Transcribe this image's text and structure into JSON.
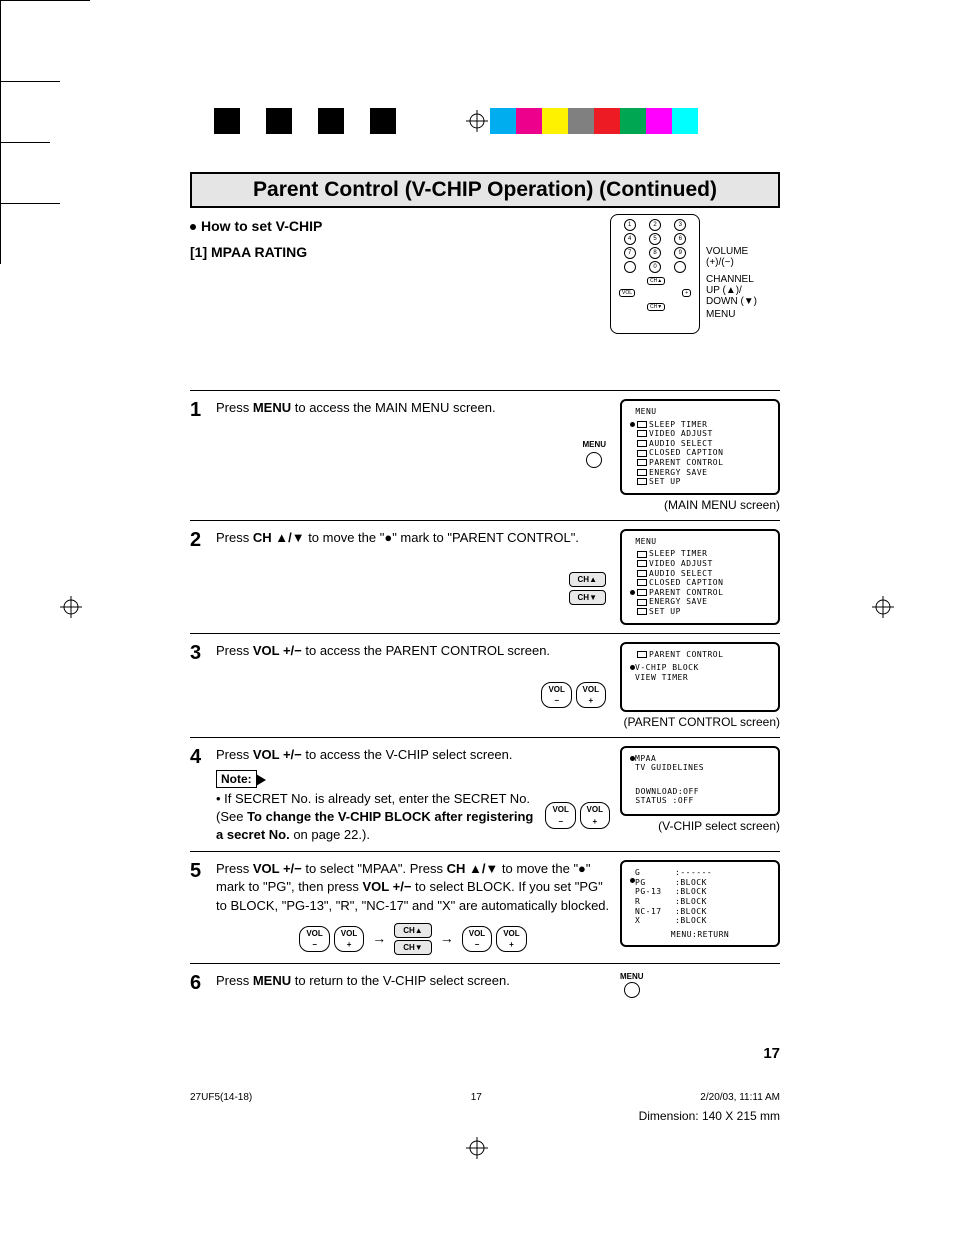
{
  "title": "Parent Control (V-CHIP Operation) (Continued)",
  "subhead1": "How to set V-CHIP",
  "subhead2": "[1] MPAA RATING",
  "remote_labels": {
    "volume": "VOLUME",
    "volume_sub": "(+)/(−)",
    "channel": "CHANNEL",
    "channel_sub": "UP (▲)/\nDOWN (▼)",
    "menu": "MENU"
  },
  "steps": {
    "s1": {
      "num": "1",
      "text_a": "Press ",
      "text_b": "MENU",
      "text_c": " to access the MAIN MENU screen.",
      "btn_label": "MENU",
      "screen_title": "MENU",
      "screen_items": [
        "SLEEP TIMER",
        "VIDEO ADJUST",
        "AUDIO SELECT",
        "CLOSED CAPTION",
        "PARENT CONTROL",
        "ENERGY SAVE",
        "SET UP"
      ],
      "cursor_index": 0,
      "screen_label": "(MAIN MENU screen)"
    },
    "s2": {
      "num": "2",
      "text_a": "Press ",
      "text_b": "CH ▲/▼",
      "text_c": " to move the \"●\" mark to \"PARENT CONTROL\".",
      "btn1": "CH▲",
      "btn2": "CH▼",
      "screen_title": "MENU",
      "screen_items": [
        "SLEEP TIMER",
        "VIDEO ADJUST",
        "AUDIO SELECT",
        "CLOSED CAPTION",
        "PARENT CONTROL",
        "ENERGY SAVE",
        "SET UP"
      ],
      "cursor_index": 4
    },
    "s3": {
      "num": "3",
      "text_a": "Press ",
      "text_b": "VOL +/−",
      "text_c": " to access the PARENT CONTROL screen.",
      "vol_minus": "VOL\n−",
      "vol_plus": "VOL\n+",
      "screen_title": "PARENT CONTROL",
      "screen_items": [
        "V-CHIP BLOCK",
        "VIEW TIMER"
      ],
      "cursor_index": 0,
      "screen_label": "(PARENT CONTROL screen)"
    },
    "s4": {
      "num": "4",
      "text_a": "Press ",
      "text_b": "VOL +/−",
      "text_c": " to access the V-CHIP select screen.",
      "note_label": "Note:",
      "note_text_a": "If SECRET No. is already set, enter the SECRET No. (See ",
      "note_text_b": "To change the V-CHIP BLOCK after registering a secret No.",
      "note_text_c": " on page 22.).",
      "vol_minus": "VOL\n−",
      "vol_plus": "VOL\n+",
      "screen_items": [
        "MPAA",
        "TV GUIDELINES"
      ],
      "cursor_index": 0,
      "download": "DOWNLOAD:OFF",
      "status": "STATUS  :OFF",
      "screen_label": "(V-CHIP select screen)"
    },
    "s5": {
      "num": "5",
      "text_a": "Press ",
      "text_b": "VOL +/−",
      "text_c": " to select \"MPAA\". Press ",
      "text_d": "CH ▲/▼",
      "text_e": " to move the \"●\" mark to \"PG\", then press ",
      "text_f": "VOL +/−",
      "text_g": " to select BLOCK. If you set \"PG\" to BLOCK, \"PG-13\", \"R\", \"NC-17\" and \"X\" are automatically blocked.",
      "vol_minus": "VOL\n−",
      "vol_plus": "VOL\n+",
      "ch_up": "CH▲",
      "ch_down": "CH▼",
      "arrow": "→",
      "ratings": [
        {
          "label": "G",
          "val": ":------"
        },
        {
          "label": "PG",
          "val": ":BLOCK"
        },
        {
          "label": "PG-13",
          "val": ":BLOCK"
        },
        {
          "label": "R",
          "val": ":BLOCK"
        },
        {
          "label": "NC-17",
          "val": ":BLOCK"
        },
        {
          "label": "X",
          "val": ":BLOCK"
        }
      ],
      "cursor_index": 1,
      "menu_return": "MENU:RETURN"
    },
    "s6": {
      "num": "6",
      "text_a": "Press ",
      "text_b": "MENU",
      "text_c": " to return to the V-CHIP select screen.",
      "btn_label": "MENU"
    }
  },
  "page_number": "17",
  "footer_file": "27UF5(14-18)",
  "footer_page": "17",
  "footer_date": "2/20/03, 11:11 AM",
  "dimension": "Dimension: 140  X 215 mm",
  "color_bar_colors_left": [
    "#000000",
    "#ffffff",
    "#000000",
    "#ffffff",
    "#000000",
    "#ffffff",
    "#000000",
    "#ffffff"
  ],
  "color_bar_colors_right": [
    "#00aeef",
    "#ec008c",
    "#fff200",
    "#808080",
    "#ed1c24",
    "#00a651",
    "#ff00ff",
    "#00ffff"
  ]
}
